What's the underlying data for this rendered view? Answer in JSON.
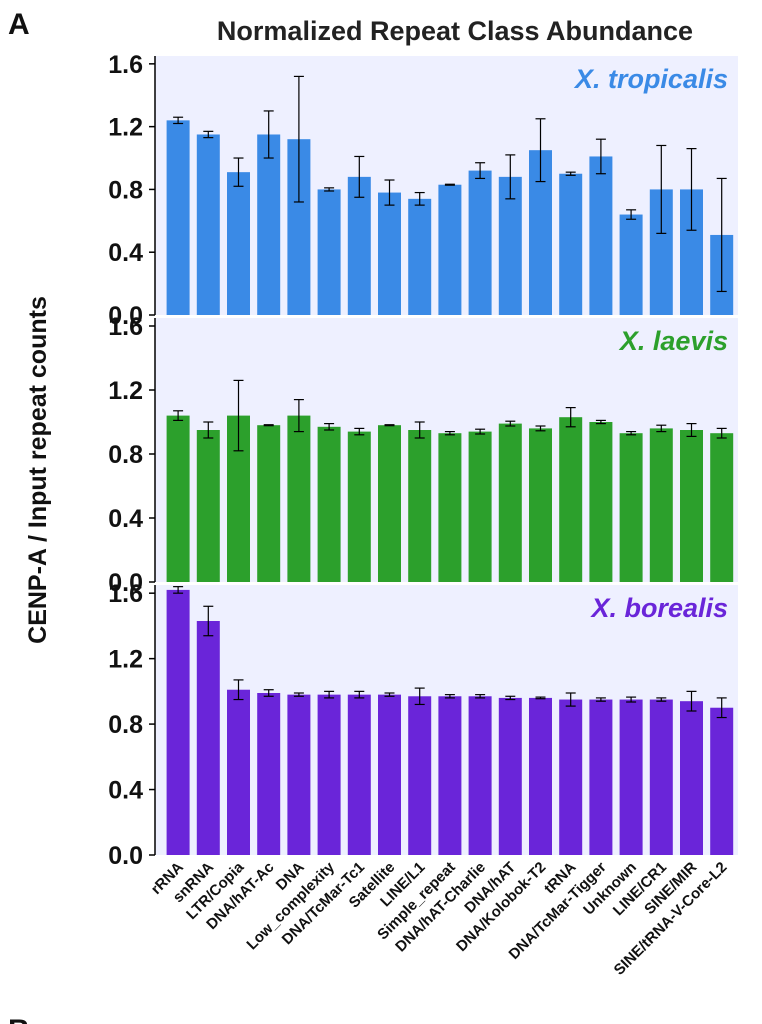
{
  "panel_letter": "A",
  "bottom_letter": "B",
  "title": "Normalized Repeat Class Abundance",
  "ylabel": "CENP-A / Input repeat counts",
  "chart_data": {
    "type": "bar",
    "title": "Normalized Repeat Class Abundance",
    "ylabel": "CENP-A / Input repeat counts",
    "categories": [
      "rRNA",
      "snRNA",
      "LTR/Copia",
      "DNA/hAT-Ac",
      "DNA",
      "Low_complexity",
      "DNA/TcMar-Tc1",
      "Satellite",
      "LINE/L1",
      "Simple_repeat",
      "DNA/hAT-Charlie",
      "DNA/hAT",
      "DNA/Kolobok-T2",
      "tRNA",
      "DNA/TcMar-Tigger",
      "Unknown",
      "LINE/CR1",
      "SINE/MIR",
      "SINE/tRNA-V-Core-L2"
    ],
    "yticks": [
      "0.0",
      "0.4",
      "0.8",
      "1.2",
      "1.6"
    ],
    "ylim": [
      0,
      1.65
    ],
    "grid": false,
    "panels": [
      {
        "name": "X. tropicalis",
        "color": "#3a8ae6",
        "values": [
          1.24,
          1.15,
          0.91,
          1.15,
          1.12,
          0.8,
          0.88,
          0.78,
          0.74,
          0.83,
          0.92,
          0.88,
          1.05,
          0.9,
          1.01,
          0.64,
          0.8,
          0.8,
          0.51
        ],
        "errors": [
          0.02,
          0.02,
          0.09,
          0.15,
          0.4,
          0.01,
          0.13,
          0.08,
          0.04,
          0.003,
          0.05,
          0.14,
          0.2,
          0.01,
          0.11,
          0.03,
          0.28,
          0.26,
          0.36
        ]
      },
      {
        "name": "X. laevis",
        "color": "#2ca02c",
        "values": [
          1.04,
          0.95,
          1.04,
          0.98,
          1.04,
          0.97,
          0.94,
          0.98,
          0.95,
          0.93,
          0.94,
          0.99,
          0.96,
          1.03,
          1.0,
          0.93,
          0.96,
          0.95,
          0.93
        ],
        "errors": [
          0.03,
          0.05,
          0.22,
          0.003,
          0.1,
          0.02,
          0.02,
          0.003,
          0.05,
          0.01,
          0.015,
          0.015,
          0.015,
          0.06,
          0.01,
          0.01,
          0.02,
          0.04,
          0.03
        ]
      },
      {
        "name": "X. borealis",
        "color": "#6a25d9",
        "values": [
          1.62,
          1.43,
          1.01,
          0.99,
          0.98,
          0.98,
          0.98,
          0.98,
          0.97,
          0.97,
          0.97,
          0.96,
          0.96,
          0.95,
          0.95,
          0.95,
          0.95,
          0.94,
          0.9
        ],
        "errors": [
          0.02,
          0.09,
          0.06,
          0.02,
          0.01,
          0.02,
          0.02,
          0.01,
          0.05,
          0.01,
          0.01,
          0.01,
          0.005,
          0.04,
          0.01,
          0.015,
          0.01,
          0.06,
          0.06
        ]
      }
    ]
  }
}
